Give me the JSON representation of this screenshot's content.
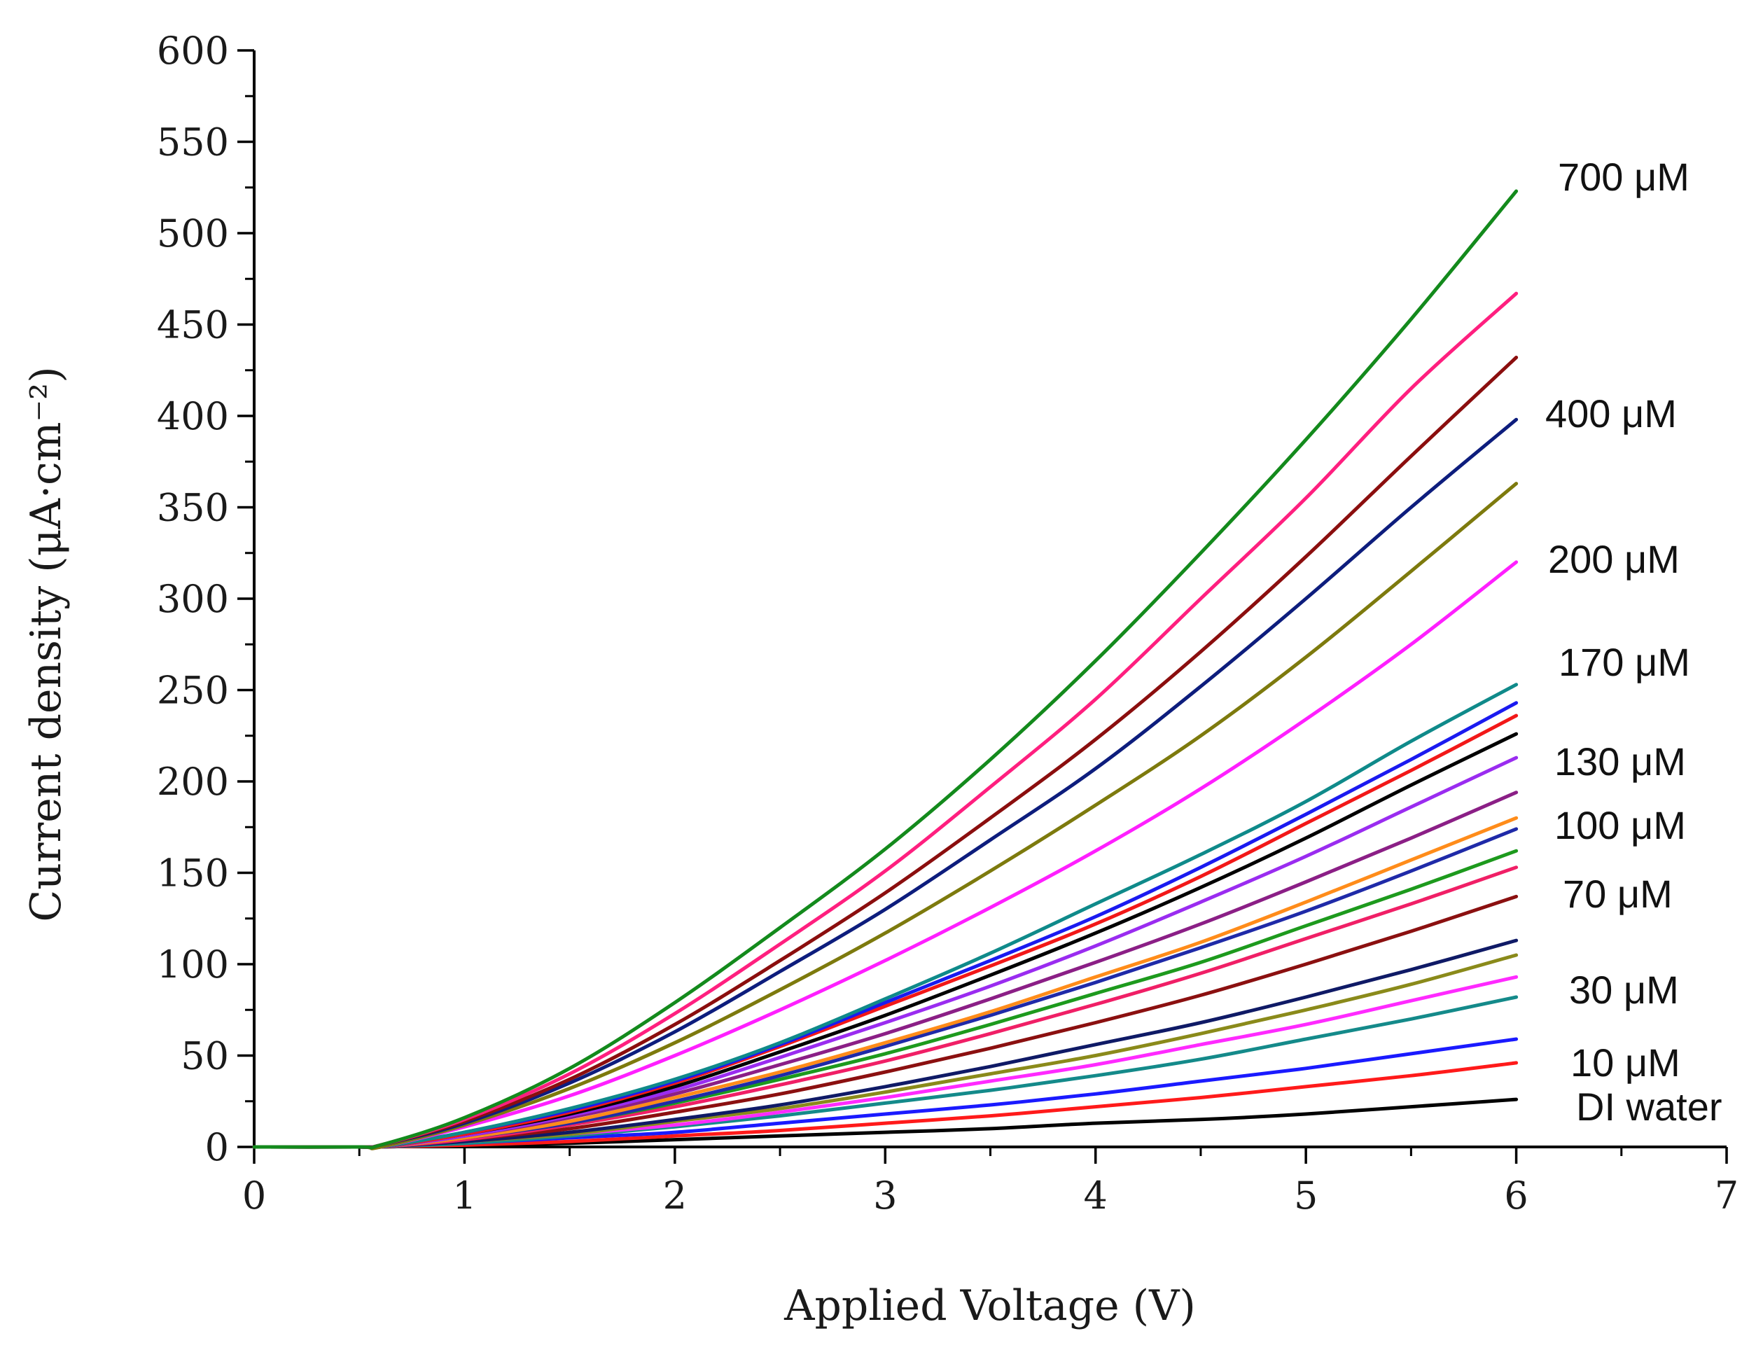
{
  "chart_data": {
    "type": "line",
    "title": "",
    "xlabel": "Applied Voltage (V)",
    "ylabel": "Current density (μA·cm⁻²)",
    "xlim": [
      0,
      7
    ],
    "ylim": [
      0,
      600
    ],
    "xticks": [
      0,
      1,
      2,
      3,
      4,
      5,
      6,
      7
    ],
    "yticks": [
      0,
      50,
      100,
      150,
      200,
      250,
      300,
      350,
      400,
      450,
      500,
      550,
      600
    ],
    "x": [
      0,
      0.5,
      0.6,
      1,
      1.5,
      2,
      2.5,
      3,
      3.5,
      4,
      4.5,
      5,
      5.5,
      6
    ],
    "grid": false,
    "series": [
      {
        "name": "700 μM",
        "color": "#138a1c",
        "values": [
          0,
          0,
          1,
          16,
          43,
          79,
          120,
          163,
          212,
          266,
          325,
          387,
          453,
          523
        ]
      },
      {
        "name": "",
        "color": "#ff1f7f",
        "values": [
          0,
          0,
          1,
          15,
          40,
          73,
          111,
          151,
          197,
          245,
          300,
          355,
          415,
          467
        ]
      },
      {
        "name": "",
        "color": "#8b0e0e",
        "values": [
          0,
          0,
          1,
          14,
          37,
          67,
          102,
          139,
          180,
          223,
          271,
          323,
          378,
          432
        ]
      },
      {
        "name": "400 μM",
        "color": "#0d1d7d",
        "values": [
          0,
          0,
          1,
          13,
          35,
          63,
          96,
          130,
          168,
          207,
          252,
          300,
          350,
          398
        ]
      },
      {
        "name": "",
        "color": "#7d7a0d",
        "values": [
          0,
          0,
          0,
          12,
          32,
          57,
          86,
          117,
          151,
          187,
          225,
          268,
          315,
          363
        ]
      },
      {
        "name": "200 μM",
        "color": "#ff1fff",
        "values": [
          0,
          0,
          0,
          11,
          28,
          50,
          75,
          102,
          131,
          162,
          196,
          234,
          275,
          320
        ]
      },
      {
        "name": "170 μM",
        "color": "#0f8a8a",
        "values": [
          0,
          0,
          0,
          8,
          21,
          37,
          57,
          81,
          106,
          133,
          160,
          189,
          222,
          253
        ]
      },
      {
        "name": "",
        "color": "#1a1af0",
        "values": [
          0,
          0,
          0,
          8,
          20,
          36,
          56,
          79,
          102,
          126,
          153,
          182,
          212,
          243
        ]
      },
      {
        "name": "",
        "color": "#f21818",
        "values": [
          0,
          0,
          0,
          7,
          19,
          35,
          55,
          77,
          99,
          122,
          148,
          177,
          206,
          236
        ]
      },
      {
        "name": "130 μM",
        "color": "#000000",
        "values": [
          0,
          0,
          0,
          7,
          18,
          33,
          52,
          72,
          94,
          117,
          142,
          169,
          198,
          226
        ]
      },
      {
        "name": "",
        "color": "#9a2cf0",
        "values": [
          0,
          0,
          0,
          6,
          17,
          31,
          49,
          68,
          88,
          110,
          134,
          159,
          186,
          213
        ]
      },
      {
        "name": "",
        "color": "#8b1f86",
        "values": [
          0,
          0,
          0,
          6,
          16,
          29,
          45,
          62,
          81,
          101,
          122,
          145,
          169,
          194
        ]
      },
      {
        "name": "100 μM",
        "color": "#ff8c1a",
        "values": [
          0,
          0,
          0,
          5,
          14,
          27,
          41,
          57,
          74,
          93,
          112,
          134,
          157,
          180
        ]
      },
      {
        "name": "",
        "color": "#1f2aa8",
        "values": [
          0,
          0,
          0,
          5,
          13,
          25,
          39,
          55,
          72,
          90,
          109,
          129,
          151,
          174
        ]
      },
      {
        "name": "",
        "color": "#1d9a1d",
        "values": [
          0,
          0,
          0,
          5,
          13,
          24,
          37,
          51,
          67,
          84,
          101,
          121,
          141,
          162
        ]
      },
      {
        "name": "70 μM",
        "color": "#f01f66",
        "values": [
          0,
          0,
          0,
          4,
          12,
          22,
          34,
          47,
          62,
          78,
          95,
          114,
          133,
          153
        ]
      },
      {
        "name": "",
        "color": "#8b1010",
        "values": [
          0,
          0,
          0,
          4,
          10,
          19,
          29,
          41,
          54,
          68,
          83,
          100,
          118,
          137
        ]
      },
      {
        "name": "",
        "color": "#0f1a66",
        "values": [
          0,
          0,
          0,
          3,
          8,
          15,
          23,
          33,
          44,
          56,
          68,
          82,
          97,
          113
        ]
      },
      {
        "name": "30 μM",
        "color": "#8a8a1a",
        "values": [
          0,
          0,
          0,
          3,
          7,
          14,
          21,
          30,
          40,
          50,
          62,
          75,
          89,
          105
        ]
      },
      {
        "name": "",
        "color": "#ff2aff",
        "values": [
          0,
          0,
          0,
          3,
          7,
          12,
          19,
          27,
          36,
          45,
          56,
          67,
          80,
          93
        ]
      },
      {
        "name": "",
        "color": "#148a8a",
        "values": [
          0,
          0,
          0,
          2,
          6,
          11,
          17,
          24,
          31,
          39,
          48,
          59,
          70,
          82
        ]
      },
      {
        "name": "10 μM",
        "color": "#1a1aff",
        "values": [
          0,
          0,
          0,
          2,
          5,
          8,
          13,
          18,
          23,
          29,
          36,
          43,
          51,
          59
        ]
      },
      {
        "name": "",
        "color": "#ff1a1a",
        "values": [
          0,
          0,
          0,
          1,
          3,
          6,
          9,
          13,
          17,
          22,
          27,
          33,
          39,
          46
        ]
      },
      {
        "name": "DI water",
        "color": "#000000",
        "values": [
          0,
          0,
          0,
          1,
          2,
          4,
          6,
          8,
          10,
          13,
          15,
          18,
          22,
          26
        ]
      }
    ]
  }
}
